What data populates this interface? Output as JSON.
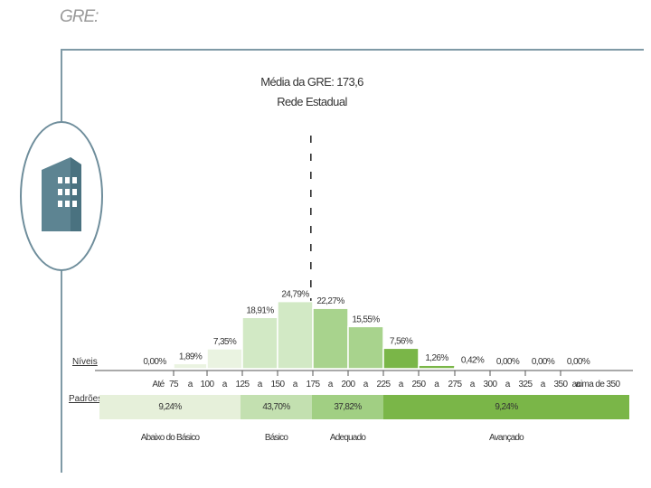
{
  "header": {
    "title": "GRE:"
  },
  "info": {
    "mean_label": "Média da GRE: 173,6",
    "network_label": "Rede Estadual"
  },
  "axis": {
    "levels_label": "Níveis",
    "patterns_label": "Padrões",
    "range_word": "a"
  },
  "chart_data": {
    "type": "bar",
    "x_ticks": [
      "Até",
      "75",
      "100",
      "125",
      "150",
      "175",
      "200",
      "225",
      "250",
      "275",
      "300",
      "325",
      "350",
      "acima de 350"
    ],
    "bins": [
      {
        "from": 0,
        "to": 75,
        "value": 0.0,
        "label": "0,00%",
        "pattern": "Abaixo do Básico"
      },
      {
        "from": 75,
        "to": 100,
        "value": 1.89,
        "label": "1,89%",
        "pattern": "Abaixo do Básico"
      },
      {
        "from": 100,
        "to": 125,
        "value": 7.35,
        "label": "7,35%",
        "pattern": "Abaixo do Básico"
      },
      {
        "from": 125,
        "to": 150,
        "value": 18.91,
        "label": "18,91%",
        "pattern": "Básico"
      },
      {
        "from": 150,
        "to": 175,
        "value": 24.79,
        "label": "24,79%",
        "pattern": "Básico"
      },
      {
        "from": 175,
        "to": 200,
        "value": 22.27,
        "label": "22,27%",
        "pattern": "Adequado"
      },
      {
        "from": 200,
        "to": 225,
        "value": 15.55,
        "label": "15,55%",
        "pattern": "Adequado"
      },
      {
        "from": 225,
        "to": 250,
        "value": 7.56,
        "label": "7,56%",
        "pattern": "Avançado"
      },
      {
        "from": 250,
        "to": 275,
        "value": 1.26,
        "label": "1,26%",
        "pattern": "Avançado"
      },
      {
        "from": 275,
        "to": 300,
        "value": 0.42,
        "label": "0,42%",
        "pattern": "Avançado"
      },
      {
        "from": 300,
        "to": 325,
        "value": 0.0,
        "label": "0,00%",
        "pattern": "Avançado"
      },
      {
        "from": 325,
        "to": 350,
        "value": 0.0,
        "label": "0,00%",
        "pattern": "Avançado"
      },
      {
        "from": 350,
        "to": 375,
        "value": 0.0,
        "label": "0,00%",
        "pattern": "Avançado"
      }
    ],
    "mean": 173.6,
    "patterns": [
      {
        "name": "Abaixo do Básico",
        "from": 50,
        "to": 125,
        "value": 9.24,
        "label": "9,24%",
        "color": "#e6f0da"
      },
      {
        "name": "Básico",
        "from": 125,
        "to": 175,
        "value": 43.7,
        "label": "43,70%",
        "color": "#c3e0b0"
      },
      {
        "name": "Adequado",
        "from": 175,
        "to": 225,
        "value": 37.82,
        "label": "37,82%",
        "color": "#a1cf83"
      },
      {
        "name": "Avançado",
        "from": 225,
        "to": 400,
        "value": 9.24,
        "label": "9,24%",
        "color": "#7ab648"
      }
    ],
    "bar_colors": {
      "Abaixo do Básico": "#eaf3e1",
      "Básico": "#d2e9c5",
      "Adequado": "#a8d38d",
      "Avançado": "#7ab648"
    },
    "ylim": [
      0,
      30
    ]
  }
}
